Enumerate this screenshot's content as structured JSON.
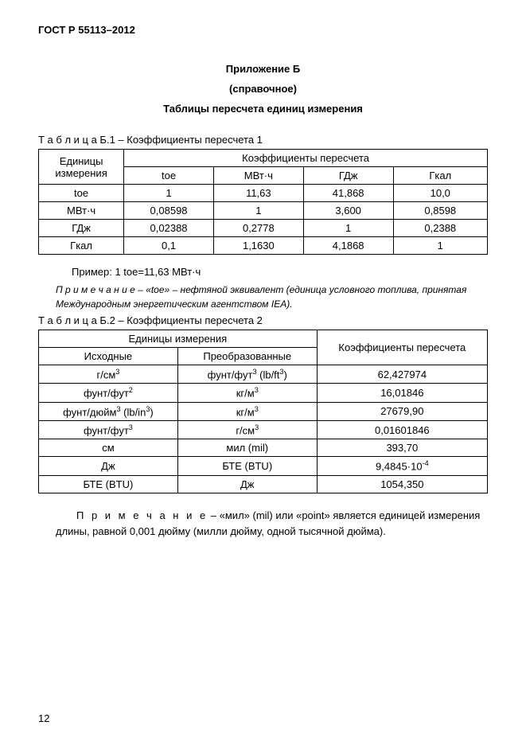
{
  "header": {
    "code": "ГОСТ Р 55113–2012"
  },
  "titles": {
    "annex": "Приложение Б",
    "reference": "(справочное)",
    "main": "Таблицы пересчета единиц измерения"
  },
  "table1": {
    "caption_prefix": "Т а б л и ц а",
    "caption": " Б.1 – Коэффициенты пересчета 1",
    "head_units": "Единицы измерения",
    "head_coef": "Коэффициенты  пересчета",
    "cols": [
      "toe",
      "МВт·ч",
      "ГДж",
      "Гкал"
    ],
    "rows": [
      {
        "unit": "toe",
        "v": [
          "1",
          "11,63",
          "41,868",
          "10,0"
        ]
      },
      {
        "unit": "МВт·ч",
        "v": [
          "0,08598",
          "1",
          "3,600",
          "0,8598"
        ]
      },
      {
        "unit": "ГДж",
        "v": [
          "0,02388",
          "0,2778",
          "1",
          "0,2388"
        ]
      },
      {
        "unit": "Гкал",
        "v": [
          "0,1",
          "1,1630",
          "4,1868",
          "1"
        ]
      }
    ]
  },
  "example": "Пример: 1 toe=11,63 МВт·ч",
  "note1": {
    "prefix": "П р и м е ч а н и е",
    "body": " – «toe» – нефтяной эквивалент (единица условного топлива, принятая Международным энергетическим агентством IEA)."
  },
  "table2": {
    "caption_prefix": "Т а б л и ц а",
    "caption": " Б.2 – Коэффициенты пересчета 2",
    "head_units": "Единицы измерения",
    "head_src": "Исходные",
    "head_conv": "Преобразованные",
    "head_coef": "Коэффициенты пересчета",
    "rows": [
      {
        "src_html": "г/см<sup>3</sup>",
        "conv_html": "фунт/фут<sup>3</sup> (lb/ft<sup>3</sup>)",
        "coef": "62,427974"
      },
      {
        "src_html": "фунт/фут<sup>2</sup>",
        "conv_html": "кг/м<sup>3</sup>",
        "coef": "16,01846"
      },
      {
        "src_html": "фунт/дюйм<sup>3</sup> (lb/in<sup>3</sup>)",
        "conv_html": "кг/м<sup>3</sup>",
        "coef": "27679,90"
      },
      {
        "src_html": "фунт/фут<sup>3</sup>",
        "conv_html": "г/см<sup>3</sup>",
        "coef": "0,01601846"
      },
      {
        "src_html": "см",
        "conv_html": "мил (mil)",
        "coef": "393,70"
      },
      {
        "src_html": "Дж",
        "conv_html": "БТЕ (BTU)",
        "coef_html": "9,4845·10<sup>-4</sup>"
      },
      {
        "src_html": "БТЕ (BTU)",
        "conv_html": "Дж",
        "coef": "1054,350"
      }
    ]
  },
  "note2": {
    "prefix": "П р и м е ч а н и е",
    "body": " – «мил» (mil) или «point» является единицей измерения длины, равной 0,001 дюйму (милли дюйму, одной тысячной дюйма)."
  },
  "page_number": "12"
}
